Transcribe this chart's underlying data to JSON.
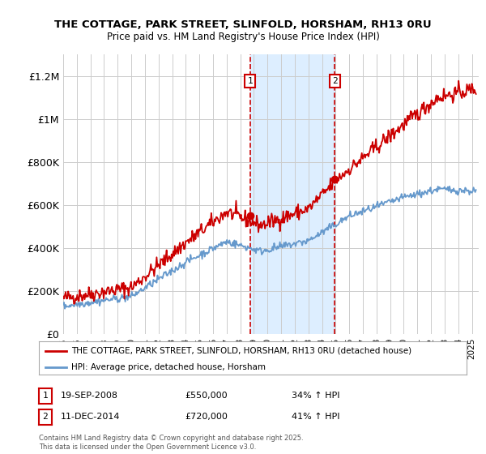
{
  "title1": "THE COTTAGE, PARK STREET, SLINFOLD, HORSHAM, RH13 0RU",
  "title2": "Price paid vs. HM Land Registry's House Price Index (HPI)",
  "ylabel_ticks": [
    "£0",
    "£200K",
    "£400K",
    "£600K",
    "£800K",
    "£1M",
    "£1.2M"
  ],
  "ylabel_vals": [
    0,
    200000,
    400000,
    600000,
    800000,
    1000000,
    1200000
  ],
  "ylim": [
    0,
    1300000
  ],
  "xlim_start": 1995.0,
  "xlim_end": 2025.5,
  "sale1_x": 2008.72,
  "sale1_y": 550000,
  "sale1_label": "19-SEP-2008",
  "sale1_price": "£550,000",
  "sale1_hpi": "34% ↑ HPI",
  "sale2_x": 2014.94,
  "sale2_y": 720000,
  "sale2_label": "11-DEC-2014",
  "sale2_price": "£720,000",
  "sale2_hpi": "41% ↑ HPI",
  "red_line_color": "#cc0000",
  "blue_line_color": "#6699cc",
  "shade_color": "#ddeeff",
  "legend_label_red": "THE COTTAGE, PARK STREET, SLINFOLD, HORSHAM, RH13 0RU (detached house)",
  "legend_label_blue": "HPI: Average price, detached house, Horsham",
  "footer": "Contains HM Land Registry data © Crown copyright and database right 2025.\nThis data is licensed under the Open Government Licence v3.0.",
  "background_color": "#ffffff",
  "grid_color": "#cccccc"
}
